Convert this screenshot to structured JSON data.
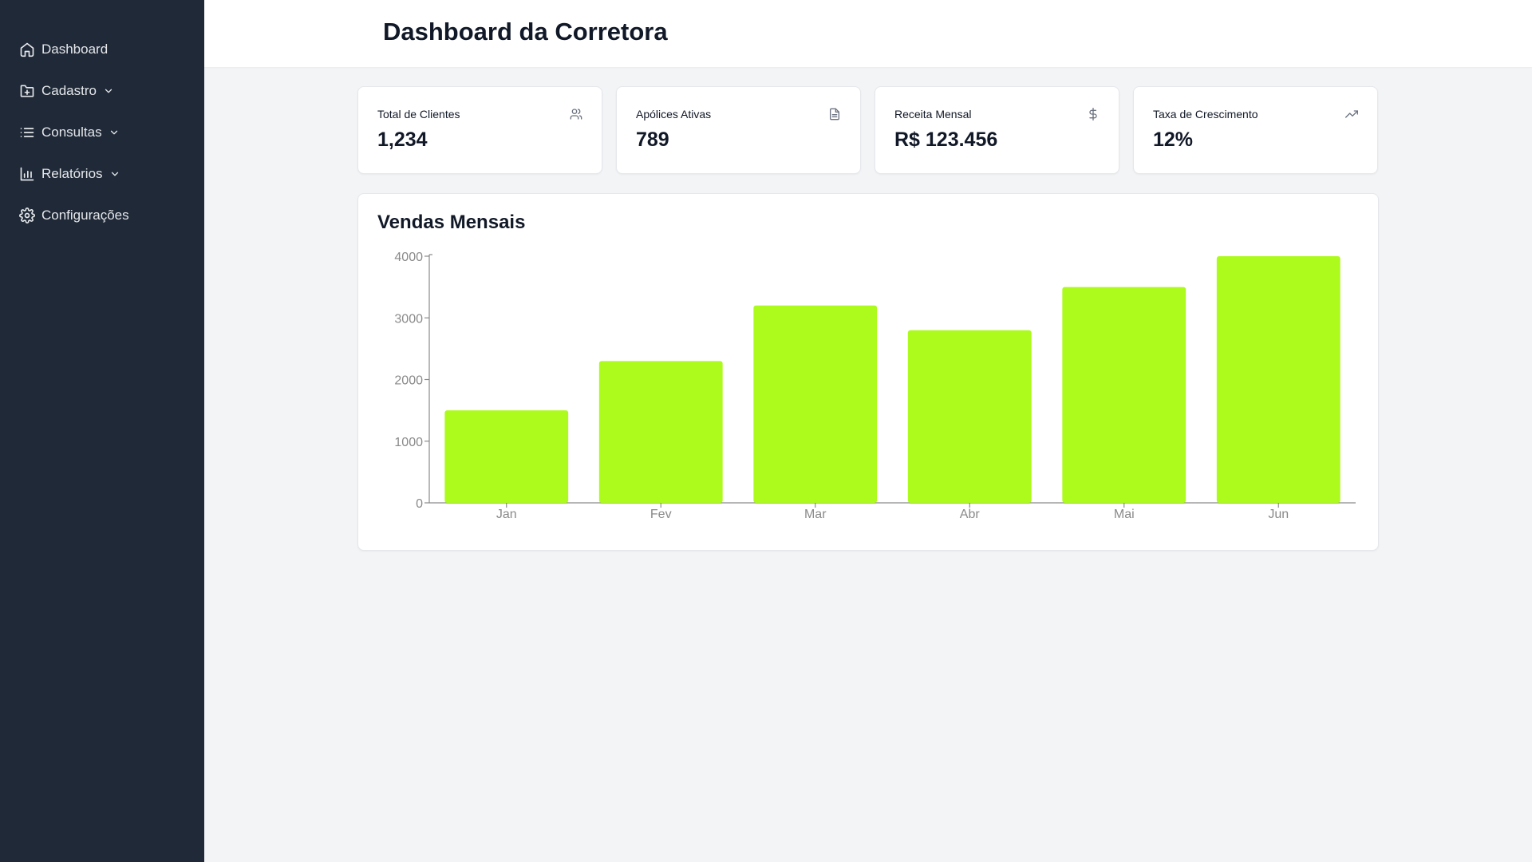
{
  "sidebar": {
    "items": [
      {
        "label": "Dashboard",
        "icon": "home-icon",
        "has_submenu": false
      },
      {
        "label": "Cadastro",
        "icon": "folder-plus-icon",
        "has_submenu": true
      },
      {
        "label": "Consultas",
        "icon": "list-icon",
        "has_submenu": true
      },
      {
        "label": "Relatórios",
        "icon": "bar-chart-icon",
        "has_submenu": true
      },
      {
        "label": "Configurações",
        "icon": "gear-icon",
        "has_submenu": false
      }
    ]
  },
  "header": {
    "title": "Dashboard da Corretora"
  },
  "stats": [
    {
      "label": "Total de Clientes",
      "value": "1,234",
      "icon": "users-icon"
    },
    {
      "label": "Apólices Ativas",
      "value": "789",
      "icon": "document-icon"
    },
    {
      "label": "Receita Mensal",
      "value": "R$ 123.456",
      "icon": "dollar-icon"
    },
    {
      "label": "Taxa de Crescimento",
      "value": "12%",
      "icon": "trending-up-icon"
    }
  ],
  "colors": {
    "sidebar_bg": "#1f2937",
    "bar": "#adfa1d",
    "page_bg": "#f3f4f6"
  },
  "chart_data": {
    "type": "bar",
    "title": "Vendas Mensais",
    "categories": [
      "Jan",
      "Fev",
      "Mar",
      "Abr",
      "Mai",
      "Jun"
    ],
    "values": [
      1500,
      2300,
      3200,
      2800,
      3500,
      4000
    ],
    "yticks": [
      0,
      1000,
      2000,
      3000,
      4000
    ],
    "ylim": [
      0,
      4000
    ],
    "xlabel": "",
    "ylabel": "",
    "grid": false,
    "bar_color": "#adfa1d"
  }
}
